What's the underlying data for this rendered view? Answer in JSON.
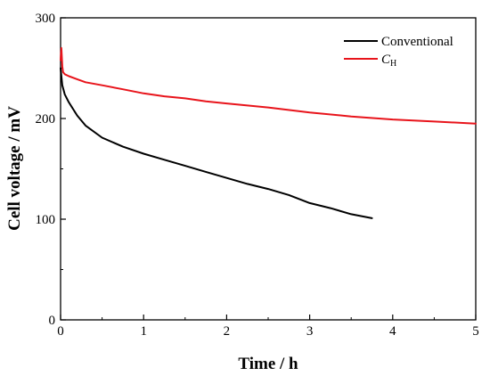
{
  "chart_data": {
    "type": "line",
    "xlabel": "Time / h",
    "ylabel": "Cell voltage / mV",
    "xlim": [
      0,
      5
    ],
    "ylim": [
      0,
      300
    ],
    "xticks": [
      "0",
      "1",
      "2",
      "3",
      "4",
      "5"
    ],
    "yticks": [
      "0",
      "100",
      "200",
      "300"
    ],
    "grid": false,
    "legend_position": "top-right",
    "series": [
      {
        "name": "Conventional",
        "color": "#000000",
        "x": [
          0,
          0.02,
          0.05,
          0.1,
          0.2,
          0.3,
          0.5,
          0.75,
          1.0,
          1.25,
          1.5,
          1.75,
          2.0,
          2.25,
          2.5,
          2.75,
          3.0,
          3.25,
          3.5,
          3.75
        ],
        "y": [
          250,
          233,
          224,
          216,
          203,
          193,
          181,
          172,
          165,
          159,
          153,
          147,
          141,
          135,
          130,
          124,
          116,
          111,
          105,
          101
        ]
      },
      {
        "name": "C_H",
        "legend_main": "C",
        "legend_sub": "H",
        "color": "#e8141b",
        "x": [
          0,
          0.01,
          0.02,
          0.03,
          0.05,
          0.1,
          0.2,
          0.3,
          0.5,
          0.75,
          1.0,
          1.25,
          1.5,
          1.75,
          2.0,
          2.5,
          3.0,
          3.5,
          4.0,
          4.5,
          5.0
        ],
        "y": [
          258,
          270,
          252,
          246,
          244,
          242,
          239,
          236,
          233,
          229,
          225,
          222,
          220,
          217,
          215,
          211,
          206,
          202,
          199,
          197,
          195
        ]
      }
    ]
  }
}
